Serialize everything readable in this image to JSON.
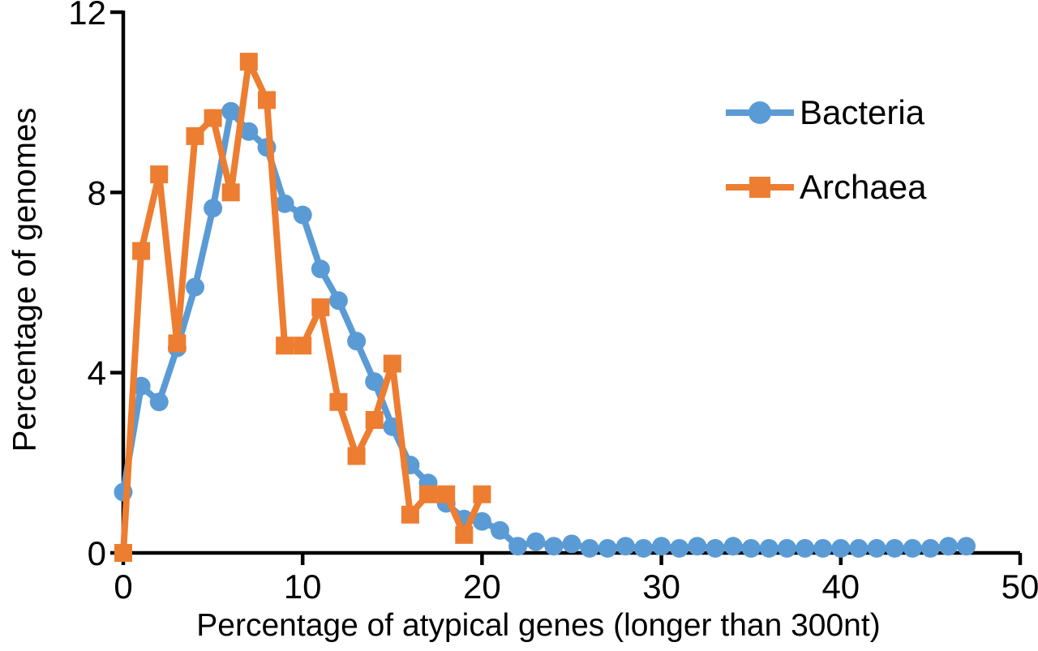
{
  "chart_data": {
    "type": "line",
    "title": "",
    "xlabel": "Percentage of atypical genes (longer than 300nt)",
    "ylabel": "Percentage of genomes",
    "xlim": [
      0,
      50
    ],
    "ylim": [
      0,
      12
    ],
    "xticks": [
      0,
      10,
      20,
      30,
      40,
      50
    ],
    "yticks": [
      0,
      4,
      8,
      12
    ],
    "grid": false,
    "background": "#ffffff",
    "axis_color": "#000000",
    "legend_position": "upper right",
    "series": [
      {
        "name": "Bacteria",
        "color": "#5B9BD5",
        "marker": "circle",
        "points": [
          [
            0,
            1.35
          ],
          [
            1,
            3.7
          ],
          [
            2,
            3.35
          ],
          [
            3,
            4.55
          ],
          [
            4,
            5.9
          ],
          [
            5,
            7.65
          ],
          [
            6,
            9.8
          ],
          [
            7,
            9.35
          ],
          [
            8,
            9.0
          ],
          [
            9,
            7.75
          ],
          [
            10,
            7.5
          ],
          [
            11,
            6.3
          ],
          [
            12,
            5.6
          ],
          [
            13,
            4.7
          ],
          [
            14,
            3.8
          ],
          [
            15,
            2.8
          ],
          [
            16,
            1.95
          ],
          [
            17,
            1.55
          ],
          [
            18,
            1.1
          ],
          [
            19,
            0.75
          ],
          [
            20,
            0.7
          ],
          [
            21,
            0.5
          ],
          [
            22,
            0.15
          ],
          [
            23,
            0.25
          ],
          [
            24,
            0.15
          ],
          [
            25,
            0.2
          ],
          [
            26,
            0.1
          ],
          [
            27,
            0.1
          ],
          [
            28,
            0.15
          ],
          [
            29,
            0.1
          ],
          [
            30,
            0.15
          ],
          [
            31,
            0.1
          ],
          [
            32,
            0.15
          ],
          [
            33,
            0.1
          ],
          [
            34,
            0.15
          ],
          [
            35,
            0.1
          ],
          [
            36,
            0.1
          ],
          [
            37,
            0.1
          ],
          [
            38,
            0.1
          ],
          [
            39,
            0.1
          ],
          [
            40,
            0.1
          ],
          [
            41,
            0.1
          ],
          [
            42,
            0.1
          ],
          [
            43,
            0.1
          ],
          [
            44,
            0.1
          ],
          [
            45,
            0.1
          ],
          [
            46,
            0.15
          ],
          [
            47,
            0.15
          ]
        ]
      },
      {
        "name": "Archaea",
        "color": "#ED7D31",
        "marker": "square",
        "points": [
          [
            0,
            0
          ],
          [
            1,
            6.7
          ],
          [
            2,
            8.4
          ],
          [
            3,
            4.65
          ],
          [
            4,
            9.25
          ],
          [
            5,
            9.65
          ],
          [
            6,
            8.0
          ],
          [
            7,
            10.9
          ],
          [
            8,
            10.05
          ],
          [
            9,
            4.6
          ],
          [
            10,
            4.6
          ],
          [
            11,
            5.45
          ],
          [
            12,
            3.35
          ],
          [
            13,
            2.15
          ],
          [
            14,
            2.95
          ],
          [
            15,
            4.2
          ],
          [
            16,
            0.85
          ],
          [
            17,
            1.3
          ],
          [
            18,
            1.3
          ],
          [
            19,
            0.4
          ],
          [
            20,
            1.3
          ]
        ]
      }
    ]
  }
}
